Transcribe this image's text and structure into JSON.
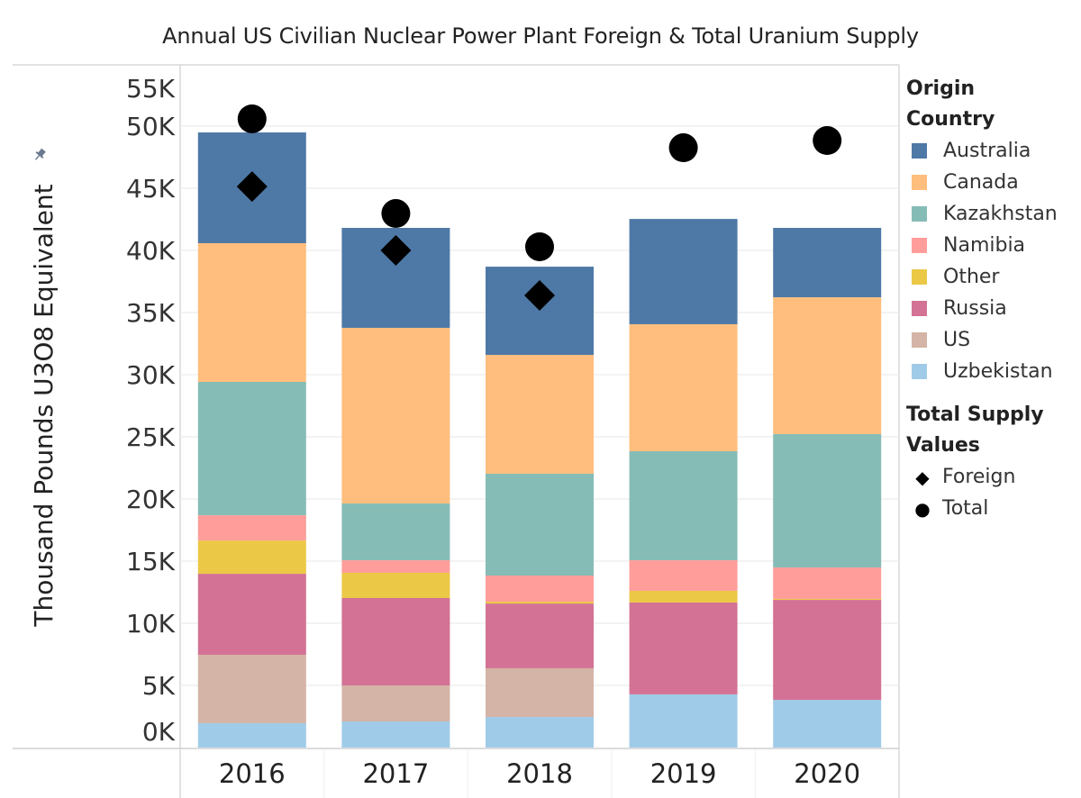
{
  "chart_data": {
    "type": "bar",
    "stacked": true,
    "title": "Annual US Civilian Nuclear Power Plant Foreign & Total Uranium Supply",
    "xlabel": "",
    "ylabel": "Thousand Pounds U3O8 Equivalent",
    "ylim": [
      0,
      55000
    ],
    "yticks": [
      0,
      5000,
      10000,
      15000,
      20000,
      25000,
      30000,
      35000,
      40000,
      45000,
      50000,
      55000
    ],
    "ytick_labels": [
      "0K",
      "5K",
      "10K",
      "15K",
      "20K",
      "25K",
      "30K",
      "35K",
      "40K",
      "45K",
      "50K",
      "55K"
    ],
    "grid": true,
    "categories": [
      "2016",
      "2017",
      "2018",
      "2019",
      "2020"
    ],
    "series": [
      {
        "name": "Uzbekistan",
        "color": "#a0cbe8",
        "values": [
          1960,
          2100,
          2460,
          4280,
          3840
        ]
      },
      {
        "name": "US",
        "color": "#d4b4a6",
        "values": [
          5500,
          2900,
          3920,
          0,
          0
        ]
      },
      {
        "name": "Russia",
        "color": "#d37295",
        "values": [
          6520,
          7030,
          5210,
          7390,
          8040
        ]
      },
      {
        "name": "Other",
        "color": "#ebc846",
        "values": [
          2680,
          2030,
          150,
          940,
          80
        ]
      },
      {
        "name": "Namibia",
        "color": "#ff9d9a",
        "values": [
          2030,
          1010,
          2100,
          2460,
          2530
        ]
      },
      {
        "name": "Kazakhstan",
        "color": "#86bcb6",
        "values": [
          10730,
          4570,
          8190,
          8770,
          10730
        ]
      },
      {
        "name": "Canada",
        "color": "#ffbe7d",
        "values": [
          11160,
          14130,
          9560,
          10220,
          11010
        ]
      },
      {
        "name": "Australia",
        "color": "#4e79a7",
        "values": [
          8910,
          8040,
          7100,
          8470,
          5580
        ]
      }
    ],
    "markers": [
      {
        "name": "Foreign",
        "shape": "diamond",
        "values": [
          45140,
          40000,
          36380,
          null,
          null
        ]
      },
      {
        "name": "Total",
        "shape": "circle",
        "values": [
          50580,
          42970,
          40290,
          48260,
          48840
        ]
      }
    ],
    "legends": [
      {
        "title_lines": [
          "Origin",
          "Country"
        ],
        "placement": "right",
        "items": [
          "Australia",
          "Canada",
          "Kazakhstan",
          "Namibia",
          "Other",
          "Russia",
          "US",
          "Uzbekistan"
        ]
      },
      {
        "title_lines": [
          "Total Supply",
          "Values"
        ],
        "placement": "right",
        "items": [
          "Foreign",
          "Total"
        ]
      }
    ]
  },
  "legend": {
    "color_title_1": "Origin",
    "color_title_2": "Country",
    "color_items": [
      {
        "label": "Australia",
        "color": "#4e79a7"
      },
      {
        "label": "Canada",
        "color": "#ffbe7d"
      },
      {
        "label": "Kazakhstan",
        "color": "#86bcb6"
      },
      {
        "label": "Namibia",
        "color": "#ff9d9a"
      },
      {
        "label": "Other",
        "color": "#ebc846"
      },
      {
        "label": "Russia",
        "color": "#d37295"
      },
      {
        "label": "US",
        "color": "#d4b4a6"
      },
      {
        "label": "Uzbekistan",
        "color": "#a0cbe8"
      }
    ],
    "shape_title_1": "Total Supply",
    "shape_title_2": "Values",
    "shape_items": [
      {
        "label": "Foreign",
        "icon": "diamond-icon",
        "glyph": "◆"
      },
      {
        "label": "Total",
        "icon": "circle-icon",
        "glyph": "●"
      }
    ]
  },
  "axis": {
    "pin_icon": "pin-icon"
  }
}
